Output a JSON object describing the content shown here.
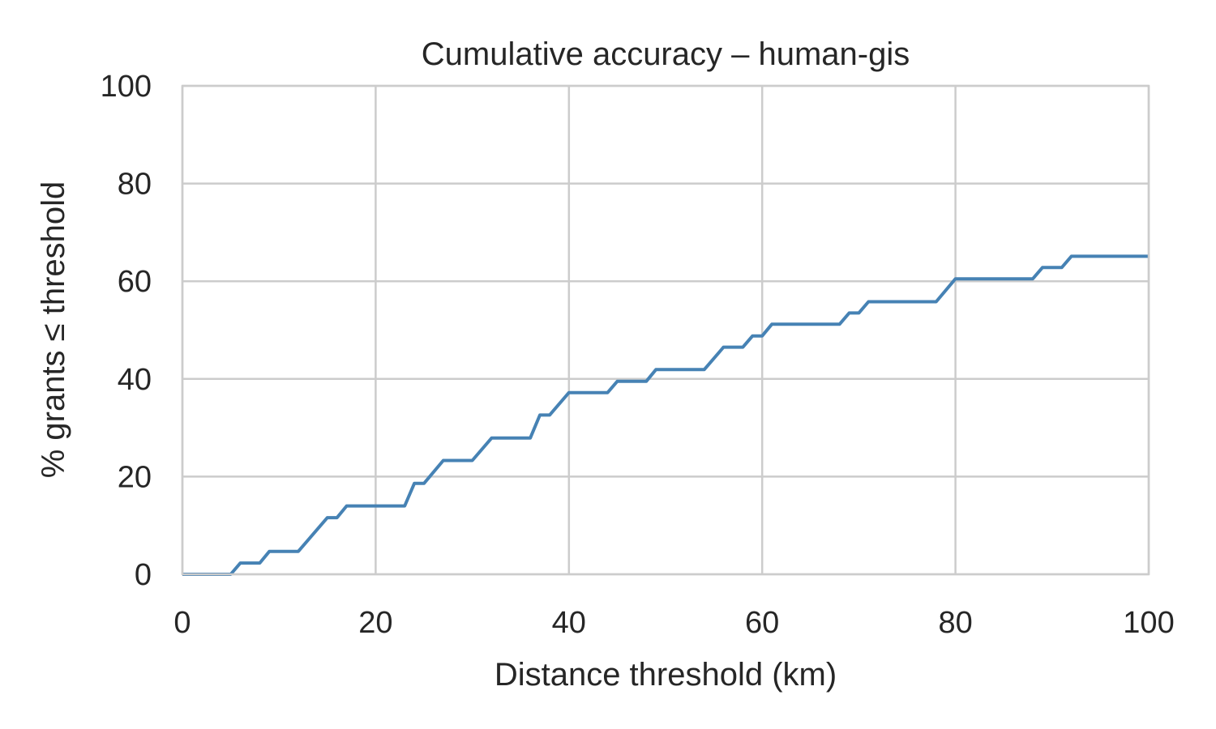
{
  "chart_data": {
    "type": "line",
    "title": "Cumulative accuracy – human-gis",
    "xlabel": "Distance threshold (km)",
    "ylabel": "% grants ≤ threshold",
    "xlim": [
      0,
      100
    ],
    "ylim": [
      0,
      100
    ],
    "xticks": [
      0,
      20,
      40,
      60,
      80,
      100
    ],
    "yticks": [
      0,
      20,
      40,
      60,
      80,
      100
    ],
    "xtick_labels": [
      "0",
      "20",
      "40",
      "60",
      "80",
      "100"
    ],
    "ytick_labels": [
      "0",
      "20",
      "40",
      "60",
      "80",
      "100"
    ],
    "grid": true,
    "legend": "none",
    "series": [
      {
        "color": "#4682B4",
        "x": [
          0,
          5,
          6,
          8,
          9,
          12,
          15,
          16,
          17,
          23,
          24,
          25,
          27,
          30,
          32,
          36,
          37,
          38,
          40,
          44,
          45,
          48,
          49,
          54,
          56,
          58,
          59,
          60,
          61,
          68,
          69,
          70,
          71,
          78,
          80,
          88,
          89,
          91,
          92,
          100
        ],
        "y": [
          0,
          0,
          2.3,
          2.3,
          4.7,
          4.7,
          11.6,
          11.6,
          14.0,
          14.0,
          18.6,
          18.6,
          23.3,
          23.3,
          27.9,
          27.9,
          32.6,
          32.6,
          37.2,
          37.2,
          39.5,
          39.5,
          41.9,
          41.9,
          46.5,
          46.5,
          48.8,
          48.8,
          51.2,
          51.2,
          53.5,
          53.5,
          55.8,
          55.8,
          60.5,
          60.5,
          62.8,
          62.8,
          65.1,
          65.1
        ]
      }
    ]
  },
  "colors": {
    "line": "#4682B4",
    "grid": "#cccccc",
    "text": "#262626",
    "background": "#ffffff"
  }
}
